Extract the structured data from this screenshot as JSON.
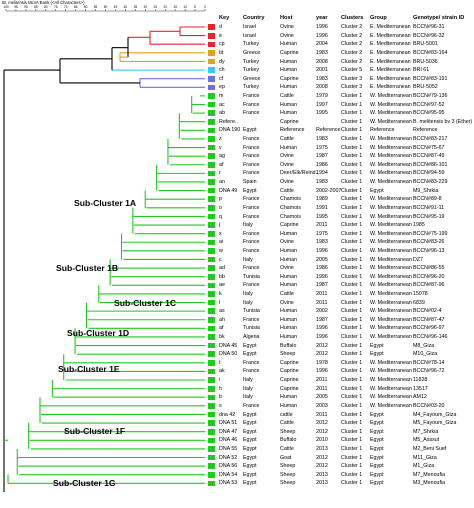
{
  "title": "IB, melitensis MLVA Bank (<All Characters>)",
  "scale_ticks": [
    "100",
    "95",
    "90",
    "85",
    "80",
    "75",
    "70",
    "65",
    "60",
    "55",
    "50",
    "45",
    "40",
    "35",
    "30",
    "25",
    "20",
    "15",
    "10",
    "5",
    "0"
  ],
  "headers": {
    "key": "Key",
    "country": "Country",
    "host": "Host",
    "year": "year",
    "clusters": "Clusters",
    "group": "Group",
    "genotype": "Genotype/ strain ID"
  },
  "subclusters": [
    "Sub-Cluster 1A",
    "Sub-Cluster 1B",
    "Sub-Cluster 1C",
    "Sub-Cluster 1D",
    "Sub-Cluster 1E",
    "Sub-Cluster 1F",
    "Sub-Cluster 1G"
  ],
  "colors": {
    "red": "#e8232b",
    "orange": "#e2a214",
    "cyan": "#29d0f0",
    "blue": "#7070dc",
    "green": "#22c822"
  },
  "rows": [
    {
      "key": "d",
      "country": "Israel",
      "host": "Ovine",
      "year": "1996",
      "cluster": "Cluster 2",
      "group": "E. Mediterranean",
      "genotype": "BCCN#96-31",
      "color": "red"
    },
    {
      "key": "e",
      "country": "Israel",
      "host": "Ovine",
      "year": "1996",
      "cluster": "Cluster 2",
      "group": "E. Mediterranean",
      "genotype": "BCCN#96-32",
      "color": "red"
    },
    {
      "key": "cp",
      "country": "Turkey",
      "host": "Human",
      "year": "2004",
      "cluster": "Cluster 2",
      "group": "E. Mediterranean",
      "genotype": "BRU-5001",
      "color": "red"
    },
    {
      "key": "bt",
      "country": "Greece",
      "host": "Caprine",
      "year": "1983",
      "cluster": "Cluster 2",
      "group": "E. Mediterranean",
      "genotype": "BCCN#83-164",
      "color": "orange"
    },
    {
      "key": "dy",
      "country": "Turkey",
      "host": "Human",
      "year": "2008",
      "cluster": "Cluster 2",
      "group": "E. Mediterranean",
      "genotype": "BRU-5036",
      "color": "orange"
    },
    {
      "key": "ch",
      "country": "Turkey",
      "host": "Human",
      "year": "2001",
      "cluster": "Cluster 5",
      "group": "E. Mediterranean",
      "genotype": "BRI 61",
      "color": "cyan"
    },
    {
      "key": "cf",
      "country": "Greece",
      "host": "Caprine",
      "year": "1983",
      "cluster": "Cluster 3",
      "group": "E. Mediterranean",
      "genotype": "BCCN#83-191",
      "color": "blue"
    },
    {
      "key": "ep",
      "country": "Turkey",
      "host": "Human",
      "year": "2008",
      "cluster": "Cluster 3",
      "group": "E. Mediterranean",
      "genotype": "BRU-5052",
      "color": "blue"
    },
    {
      "key": "m",
      "country": "France",
      "host": "Cattle",
      "year": "1979",
      "cluster": "Cluster 1",
      "group": "W. Mediterranean",
      "genotype": "BCCN#79-136",
      "color": "green"
    },
    {
      "key": "ac",
      "country": "France",
      "host": "Human",
      "year": "1997",
      "cluster": "Cluster 1",
      "group": "W. Mediterranean",
      "genotype": "BCCN#97-52",
      "color": "green"
    },
    {
      "key": "ab",
      "country": "France",
      "host": "Human",
      "year": "1995",
      "cluster": "Cluster 1",
      "group": "W. Mediterranean",
      "genotype": "BCCN#95-95",
      "color": "green"
    },
    {
      "key": "Refere..",
      "country": "",
      "host": "Caprine",
      "year": "",
      "cluster": "Cluster 1",
      "group": "W. Mediterranean",
      "genotype": "B. melitensis bv 3 (Ether)",
      "color": "green"
    },
    {
      "key": "DNA 190",
      "country": "Egypt",
      "host": "Reference",
      "year": "Reference",
      "cluster": "Cluster 1",
      "group": "Reference",
      "genotype": "Reference",
      "color": "green"
    },
    {
      "key": "z",
      "country": "France",
      "host": "Cattle",
      "year": "1983",
      "cluster": "Cluster 1",
      "group": "W. Mediterranean",
      "genotype": "BCCN#83-217",
      "color": "green"
    },
    {
      "key": "v",
      "country": "France",
      "host": "Human",
      "year": "1975",
      "cluster": "Cluster 1",
      "group": "W. Mediterranean",
      "genotype": "BCCN#75-67",
      "color": "green"
    },
    {
      "key": "ag",
      "country": "France",
      "host": "Ovine",
      "year": "1987",
      "cluster": "Cluster 1",
      "group": "W. Mediterranean",
      "genotype": "BCCN#87-49",
      "color": "green"
    },
    {
      "key": "af",
      "country": "France",
      "host": "Ovine",
      "year": "1986",
      "cluster": "Cluster 1",
      "group": "W. Mediterranean",
      "genotype": "BCCN#86-101",
      "color": "green"
    },
    {
      "key": "r",
      "country": "France",
      "host": "Deer/Elk/Reind..",
      "year": "1994",
      "cluster": "Cluster 1",
      "group": "W. Mediterranean",
      "genotype": "BCCN#94-59",
      "color": "green"
    },
    {
      "key": "an",
      "country": "Spain",
      "host": "Ovine",
      "year": "1983",
      "cluster": "Cluster 1",
      "group": "W. Mediterranean",
      "genotype": "BCCN#83-229",
      "color": "green"
    },
    {
      "key": "DNA 49",
      "country": "Egypt",
      "host": "Cattle",
      "year": "2002-2007",
      "cluster": "Cluster 1",
      "group": "Egypt",
      "genotype": "M9_Shrkia",
      "color": "green"
    },
    {
      "key": "p",
      "country": "France",
      "host": "Chamois",
      "year": "1989",
      "cluster": "Cluster 1",
      "group": "W. Mediterranean",
      "genotype": "BCCN#89-8",
      "color": "green"
    },
    {
      "key": "o",
      "country": "France",
      "host": "Chamois",
      "year": "1991",
      "cluster": "Cluster 1",
      "group": "W. Mediterranean",
      "genotype": "BCCN#91-11",
      "color": "green"
    },
    {
      "key": "q",
      "country": "France",
      "host": "Chamois",
      "year": "1995",
      "cluster": "Cluster 1",
      "group": "W. Mediterranean",
      "genotype": "BCCN#95-19",
      "color": "green"
    },
    {
      "key": "j",
      "country": "Italy",
      "host": "Caprine",
      "year": "2011",
      "cluster": "Cluster 1",
      "group": "W. Mediterranean",
      "genotype": "1985",
      "color": "green"
    },
    {
      "key": "x",
      "country": "France",
      "host": "Human",
      "year": "1975",
      "cluster": "Cluster 1",
      "group": "W. Mediterranean",
      "genotype": "BCCN#75-199",
      "color": "green"
    },
    {
      "key": "ai",
      "country": "France",
      "host": "Ovine",
      "year": "1983",
      "cluster": "Cluster 1",
      "group": "W. Mediterranean",
      "genotype": "BCCN#83-26",
      "color": "green"
    },
    {
      "key": "w",
      "country": "France",
      "host": "Human",
      "year": "1996",
      "cluster": "Cluster 1",
      "group": "W. Mediterranean",
      "genotype": "BCCN#96-13",
      "color": "green"
    },
    {
      "key": "c",
      "country": "Italy",
      "host": "Human",
      "year": "2005",
      "cluster": "Cluster 1",
      "group": "W. Mediterranean",
      "genotype": "DZ7",
      "color": "green"
    },
    {
      "key": "ad",
      "country": "France",
      "host": "Ovine",
      "year": "1986",
      "cluster": "Cluster 1",
      "group": "W. Mediterranean",
      "genotype": "BCCN#86-55",
      "color": "green"
    },
    {
      "key": "bb",
      "country": "Tunisia",
      "host": "Human",
      "year": "1996",
      "cluster": "Cluster 1",
      "group": "W. Mediterranean",
      "genotype": "BCCN#96-20",
      "color": "green"
    },
    {
      "key": "ae",
      "country": "France",
      "host": "Human",
      "year": "1987",
      "cluster": "Cluster 1",
      "group": "W. Mediterranean",
      "genotype": "BCCN#87-96",
      "color": "green"
    },
    {
      "key": "k",
      "country": "Italy",
      "host": "Cattle",
      "year": "2011",
      "cluster": "Cluster 1",
      "group": "W. Mediterranean",
      "genotype": "15078",
      "color": "green"
    },
    {
      "key": "l",
      "country": "Italy",
      "host": "Ovine",
      "year": "2011",
      "cluster": "Cluster 1",
      "group": "W. Mediterranean",
      "genotype": "6839",
      "color": "green"
    },
    {
      "key": "as",
      "country": "Tunisia",
      "host": "Human",
      "year": "2002",
      "cluster": "Cluster 1",
      "group": "W. Mediterranean",
      "genotype": "BCCN#02-4",
      "color": "green"
    },
    {
      "key": "ah",
      "country": "France",
      "host": "Human",
      "year": "1987",
      "cluster": "Cluster 1",
      "group": "W. Mediterranean",
      "genotype": "BCCN#87-47",
      "color": "green"
    },
    {
      "key": "af",
      "country": "Tunisia",
      "host": "Human",
      "year": "1996",
      "cluster": "Cluster 1",
      "group": "W. Mediterranean",
      "genotype": "BCCN#96-97",
      "color": "green"
    },
    {
      "key": "bk",
      "country": "Algeria",
      "host": "Human",
      "year": "1996",
      "cluster": "Cluster 1",
      "group": "W. Mediterranean",
      "genotype": "BCCN#96-146",
      "color": "green"
    },
    {
      "key": "DNA 45",
      "country": "Egypt",
      "host": "Buffalo",
      "year": "2012",
      "cluster": "Cluster 1",
      "group": "Egypt",
      "genotype": "M8_Giza",
      "color": "green"
    },
    {
      "key": "DNA 50",
      "country": "Egypt",
      "host": "Sheep",
      "year": "2012",
      "cluster": "Cluster 1",
      "group": "Egypt",
      "genotype": "M10_Giza",
      "color": "green"
    },
    {
      "key": "t",
      "country": "France",
      "host": "Caprine",
      "year": "1978",
      "cluster": "Cluster 1",
      "group": "W. Mediterranean",
      "genotype": "BCCN#78-14",
      "color": "green"
    },
    {
      "key": "ak",
      "country": "France",
      "host": "Caprine",
      "year": "1996",
      "cluster": "Cluster 1",
      "group": "W. Mediterranean",
      "genotype": "BCCN#96-72",
      "color": "green"
    },
    {
      "key": "i",
      "country": "Italy",
      "host": "Caprine",
      "year": "2011",
      "cluster": "Cluster 1",
      "group": "W. Mediterranean",
      "genotype": "11828",
      "color": "green"
    },
    {
      "key": "h",
      "country": "Italy",
      "host": "Caprine",
      "year": "2011",
      "cluster": "Cluster 1",
      "group": "W. Mediterranean",
      "genotype": "13517",
      "color": "green"
    },
    {
      "key": "b",
      "country": "Italy",
      "host": "Human",
      "year": "2005",
      "cluster": "Cluster 1",
      "group": "W. Mediterranean",
      "genotype": "AM12",
      "color": "green"
    },
    {
      "key": "s",
      "country": "France",
      "host": "Human",
      "year": "2003",
      "cluster": "Cluster 1",
      "group": "W. Mediterranean",
      "genotype": "BCCN#03-20",
      "color": "green"
    },
    {
      "key": "dna 42",
      "country": "Egypt",
      "host": "cattle",
      "year": "2011",
      "cluster": "Cluster 1",
      "group": "Egypt",
      "genotype": "M4_Fayoum_Giza",
      "color": "green"
    },
    {
      "key": "DNA 51",
      "country": "Egypt",
      "host": "Cattle",
      "year": "2012",
      "cluster": "Cluster 1",
      "group": "Egypt",
      "genotype": "M5_Fayoum_Giza",
      "color": "green"
    },
    {
      "key": "DNA 47",
      "country": "Egypt",
      "host": "Sheep",
      "year": "2012",
      "cluster": "Cluster 1",
      "group": "Egypt",
      "genotype": "M7_Shrkia",
      "color": "green"
    },
    {
      "key": "DNA 46",
      "country": "Egypt",
      "host": "Buffalo",
      "year": "2010",
      "cluster": "Cluster 1",
      "group": "Egypt",
      "genotype": "M5_Asssut",
      "color": "green"
    },
    {
      "key": "DNA 55",
      "country": "Egypt",
      "host": "Cattle",
      "year": "2013",
      "cluster": "Cluster 1",
      "group": "Egypt",
      "genotype": "M2_Beni Suef",
      "color": "green"
    },
    {
      "key": "DNA 52",
      "country": "Egypt",
      "host": "Goat",
      "year": "2012",
      "cluster": "Cluster 1",
      "group": "Egypt",
      "genotype": "M11_Giza",
      "color": "green"
    },
    {
      "key": "DNA 56",
      "country": "Egypt",
      "host": "Sheep",
      "year": "2012",
      "cluster": "Cluster 1",
      "group": "Egypt",
      "genotype": "M1_Giza",
      "color": "green"
    },
    {
      "key": "DNA 54",
      "country": "Egypt",
      "host": "Sheep",
      "year": "2013",
      "cluster": "Cluster 1",
      "group": "Egypt",
      "genotype": "M7_Menoufia",
      "color": "green"
    },
    {
      "key": "DNA 53",
      "country": "Egypt",
      "host": "Sheep",
      "year": "2013",
      "cluster": "Cluster 1",
      "group": "Egypt",
      "genotype": "M3_Menoufia",
      "color": "green"
    }
  ]
}
